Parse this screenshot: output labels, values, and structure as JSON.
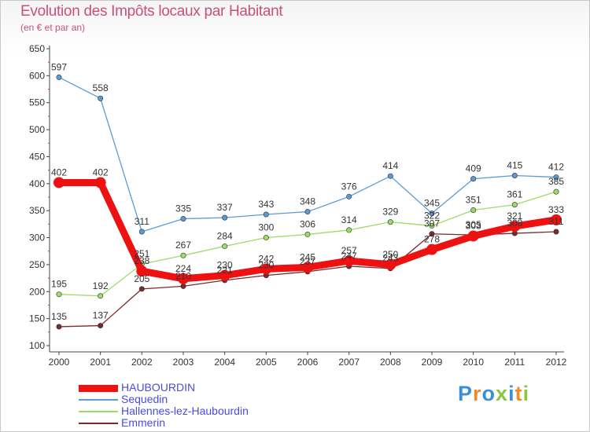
{
  "chart_data": {
    "type": "line",
    "title": "Evolution des Impôts locaux par Habitant",
    "subtitle": "(en € et par an)",
    "xlabel": "",
    "ylabel": "",
    "categories": [
      "2000",
      "2001",
      "2002",
      "2003",
      "2004",
      "2005",
      "2006",
      "2007",
      "2008",
      "2009",
      "2010",
      "2011",
      "2012"
    ],
    "ylim": [
      100,
      650
    ],
    "yticks": [
      100,
      150,
      200,
      250,
      300,
      350,
      400,
      450,
      500,
      550,
      600,
      650
    ],
    "grid": false,
    "legend_position": "bottom-left",
    "series": [
      {
        "name": "HAUBOURDIN",
        "color": "#ee1111",
        "values": [
          402,
          402,
          238,
          224,
          230,
          242,
          245,
          257,
          250,
          278,
          303,
          321,
          333
        ]
      },
      {
        "name": "Sequedin",
        "color": "#5b9bd5",
        "values": [
          597,
          558,
          311,
          335,
          337,
          343,
          348,
          376,
          414,
          345,
          409,
          415,
          412
        ]
      },
      {
        "name": "Hallennes-lez-Haubourdin",
        "color": "#99dd66",
        "values": [
          195,
          192,
          251,
          267,
          284,
          300,
          306,
          314,
          329,
          322,
          351,
          361,
          385
        ]
      },
      {
        "name": "Emmerin",
        "color": "#7a2a2a",
        "values": [
          135,
          137,
          205,
          210,
          221,
          230,
          237,
          247,
          243,
          307,
          305,
          308,
          311
        ]
      }
    ]
  },
  "logo": {
    "text": "Proxiti",
    "colors": [
      "#3b8fd9",
      "#f08a24",
      "#3b8fd9",
      "#8cc63f",
      "#3b8fd9",
      "#f08a24",
      "#8cc63f"
    ]
  }
}
